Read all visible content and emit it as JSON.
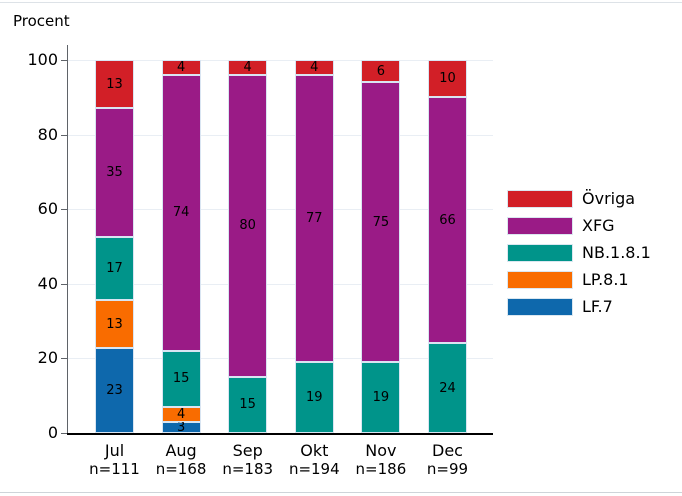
{
  "title": "Procent",
  "colors": {
    "ovriga_red": "#d21f27",
    "xfg_purple": "#9a1b86",
    "nb181_teal": "#00948a",
    "lp81_orange": "#f96c00",
    "lf7_blue": "#0e68ac",
    "segment_border": "#d9e5f2",
    "grid_line": "#e9eef4",
    "y_axis": "#5f6368",
    "x_axis": "#000000"
  },
  "chart_data": {
    "type": "bar",
    "stacked": true,
    "title": "Procent",
    "categories": [
      "Jul",
      "Aug",
      "Sep",
      "Okt",
      "Nov",
      "Dec"
    ],
    "category_counts": [
      "n=111",
      "n=168",
      "n=183",
      "n=194",
      "n=186",
      "n=99"
    ],
    "series": [
      {
        "name": "LF.7",
        "color": "#0e68ac",
        "values": [
          23,
          3,
          0,
          0,
          0,
          0
        ]
      },
      {
        "name": "LP.8.1",
        "color": "#f96c00",
        "values": [
          13,
          4,
          0,
          0,
          0,
          0
        ]
      },
      {
        "name": "NB.1.8.1",
        "color": "#00948a",
        "values": [
          17,
          15,
          15,
          19,
          19,
          24
        ]
      },
      {
        "name": "XFG",
        "color": "#9a1b86",
        "values": [
          35,
          74,
          80,
          77,
          75,
          66
        ]
      },
      {
        "name": "Övriga",
        "color": "#d21f27",
        "values": [
          13,
          4,
          4,
          4,
          6,
          10
        ]
      }
    ],
    "ylabel": "Procent",
    "ylim": [
      0,
      100
    ],
    "yticks": [
      0,
      20,
      40,
      60,
      80,
      100
    ],
    "grid": true,
    "legend": {
      "position": "right",
      "order_top_to_bottom": [
        "Övriga",
        "XFG",
        "NB.1.8.1",
        "LP.8.1",
        "LF.7"
      ]
    }
  }
}
